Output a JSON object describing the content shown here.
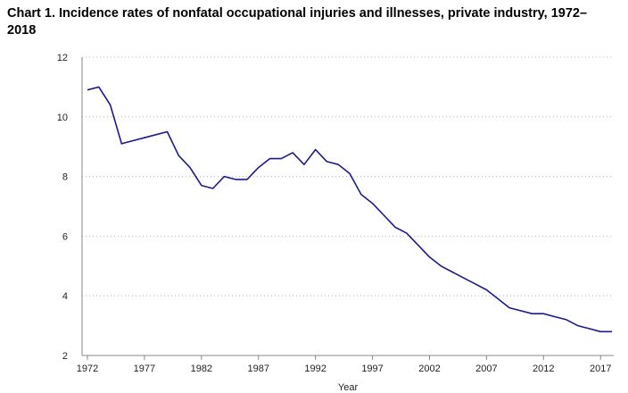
{
  "chart_data": {
    "type": "line",
    "title": "Chart 1. Incidence rates of nonfatal occupational injuries and illnesses, private industry, 1972–2018",
    "xlabel": "Year",
    "ylabel": "",
    "xlim": [
      1972,
      2018
    ],
    "ylim": [
      2,
      12
    ],
    "x_ticks": [
      1972,
      1977,
      1982,
      1987,
      1992,
      1997,
      2002,
      2007,
      2012,
      2017
    ],
    "y_ticks": [
      2,
      4,
      6,
      8,
      10,
      12
    ],
    "grid": "horizontal-dotted",
    "line_color": "#1a1a8c",
    "series": [
      {
        "x": [
          1972,
          1973,
          1974,
          1975,
          1976,
          1977,
          1978,
          1979,
          1980,
          1981,
          1982,
          1983,
          1984,
          1985,
          1986,
          1987,
          1988,
          1989,
          1990,
          1991,
          1992,
          1993,
          1994,
          1995,
          1996,
          1997,
          1998,
          1999,
          2000,
          2001,
          2002,
          2003,
          2004,
          2005,
          2006,
          2007,
          2008,
          2009,
          2010,
          2011,
          2012,
          2013,
          2014,
          2015,
          2016,
          2017,
          2018
        ],
        "values": [
          10.9,
          11.0,
          10.4,
          9.1,
          9.2,
          9.3,
          9.4,
          9.5,
          8.7,
          8.3,
          7.7,
          7.6,
          8.0,
          7.9,
          7.9,
          8.3,
          8.6,
          8.6,
          8.8,
          8.4,
          8.9,
          8.5,
          8.4,
          8.1,
          7.4,
          7.1,
          6.7,
          6.3,
          6.1,
          5.7,
          5.3,
          5.0,
          4.8,
          4.6,
          4.4,
          4.2,
          3.9,
          3.6,
          3.5,
          3.4,
          3.4,
          3.3,
          3.2,
          3.0,
          2.9,
          2.8,
          2.8
        ]
      }
    ]
  }
}
